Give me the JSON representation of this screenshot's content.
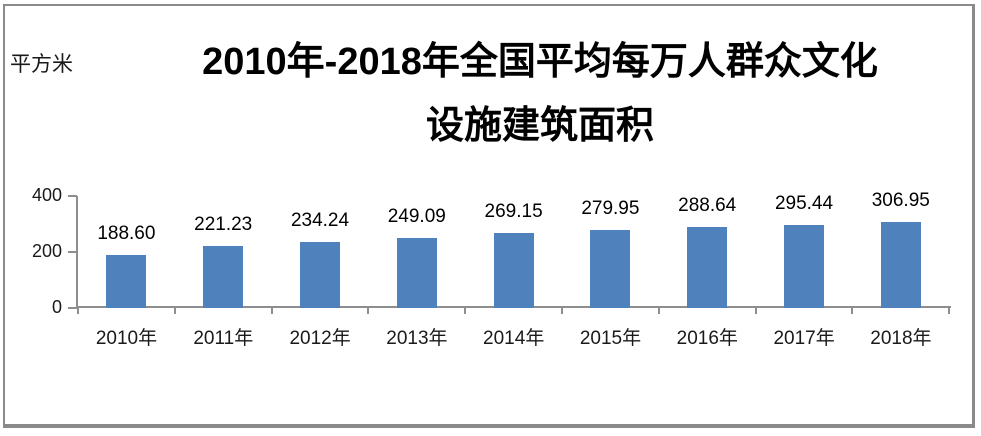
{
  "frame": {
    "border_color": "#8a8a8a",
    "background": "#ffffff"
  },
  "unit_label": "平方米",
  "title": {
    "line1": "2010年-2018年全国平均每万人群众文化",
    "line2": "设施建筑面积"
  },
  "chart_data": {
    "type": "bar",
    "title": "2010年-2018年全国平均每万人群众文化设施建筑面积",
    "ylabel": "平方米",
    "xlabel": "",
    "categories": [
      "2010年",
      "2011年",
      "2012年",
      "2013年",
      "2014年",
      "2015年",
      "2016年",
      "2017年",
      "2018年"
    ],
    "values": [
      188.6,
      221.23,
      234.24,
      249.09,
      269.15,
      279.95,
      288.64,
      295.44,
      306.95
    ],
    "data_labels": [
      "188.60",
      "221.23",
      "234.24",
      "249.09",
      "269.15",
      "279.95",
      "288.64",
      "295.44",
      "306.95"
    ],
    "y_ticks": [
      0,
      200,
      400
    ],
    "y_tick_labels": [
      "0",
      "200",
      "400"
    ],
    "ylim": [
      0,
      400
    ],
    "bar_color": "#4F81BD",
    "axis_color": "#8e8e8e",
    "grid": false,
    "legend": "none"
  }
}
